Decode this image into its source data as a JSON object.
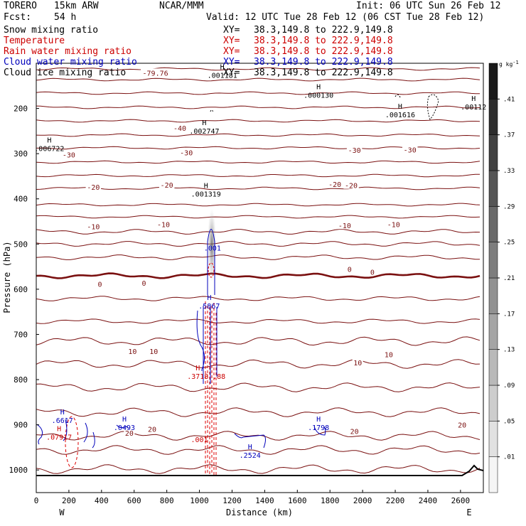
{
  "header": {
    "model": "TORERO",
    "grid": "15km ARW",
    "org": "NCAR/MMM",
    "init": "Init: 06 UTC Sun 26 Feb 12",
    "fcst_label": "Fcst:",
    "fcst_value": "54 h",
    "valid": "Valid: 12 UTC Tue 28 Feb 12 (06 CST Tue 28 Feb 12)"
  },
  "fields": [
    {
      "name": "Snow mixing ratio",
      "xy": "XY=",
      "range": "38.3,149.8 to 222.9,149.8",
      "color": "#000000"
    },
    {
      "name": "Temperature",
      "xy": "XY=",
      "range": "38.3,149.8 to 222.9,149.8",
      "color": "#cc0000"
    },
    {
      "name": "Rain water mixing ratio",
      "xy": "XY=",
      "range": "38.3,149.8 to 222.9,149.8",
      "color": "#cc0000"
    },
    {
      "name": "Cloud water mixing ratio",
      "xy": "XY=",
      "range": "38.3,149.8 to 222.9,149.8",
      "color": "#0000bb"
    },
    {
      "name": "Cloud ice mixing ratio",
      "xy": "XY=",
      "range": "38.3,149.8 to 222.9,149.8",
      "color": "#000000"
    }
  ],
  "chart_data": {
    "type": "contour cross-section",
    "xlabel": "Distance (km)",
    "ylabel": "Pressure (hPa)",
    "xlim": [
      0,
      2740
    ],
    "ylim": [
      1050,
      100
    ],
    "xticks": [
      0,
      200,
      400,
      600,
      800,
      1000,
      1200,
      1400,
      1600,
      1800,
      2000,
      2200,
      2400,
      2600
    ],
    "yticks": [
      200,
      300,
      400,
      500,
      600,
      700,
      800,
      900,
      1000
    ],
    "x_end_labels": {
      "left": "W",
      "right": "E"
    },
    "colorbar": {
      "unit": "g kg",
      "unit_exp": "-1",
      "levels": [
        0.01,
        0.05,
        0.09,
        0.13,
        0.17,
        0.21,
        0.25,
        0.29,
        0.33,
        0.37,
        0.41
      ],
      "labels": [
        ".01",
        ".05",
        ".09",
        ".13",
        ".17",
        ".21",
        ".25",
        ".29",
        ".33",
        ".37",
        ".41"
      ]
    },
    "temperature_contours": [
      {
        "label": "-79.76",
        "x": 730,
        "p": 121
      },
      {
        "label": "-40",
        "x": 880,
        "p": 243
      },
      {
        "label": "-30",
        "x": 200,
        "p": 302
      },
      {
        "label": "-30",
        "x": 920,
        "p": 297
      },
      {
        "label": "-30",
        "x": 1950,
        "p": 292
      },
      {
        "label": "-30",
        "x": 2290,
        "p": 291
      },
      {
        "label": "-20",
        "x": 350,
        "p": 374
      },
      {
        "label": "-20",
        "x": 800,
        "p": 369
      },
      {
        "label": "-20",
        "x": 1830,
        "p": 367
      },
      {
        "label": "-20",
        "x": 1930,
        "p": 370
      },
      {
        "label": "-10",
        "x": 350,
        "p": 461
      },
      {
        "label": "-10",
        "x": 780,
        "p": 456
      },
      {
        "label": "-10",
        "x": 1890,
        "p": 459
      },
      {
        "label": "-10",
        "x": 2190,
        "p": 456
      },
      {
        "label": "0",
        "x": 390,
        "p": 588
      },
      {
        "label": "0",
        "x": 660,
        "p": 586
      },
      {
        "label": "0",
        "x": 1920,
        "p": 555
      },
      {
        "label": "0",
        "x": 2060,
        "p": 562
      },
      {
        "label": "10",
        "x": 590,
        "p": 737
      },
      {
        "label": "10",
        "x": 720,
        "p": 737
      },
      {
        "label": "10",
        "x": 1970,
        "p": 762
      },
      {
        "label": "10",
        "x": 2160,
        "p": 744
      },
      {
        "label": "20",
        "x": 570,
        "p": 918
      },
      {
        "label": "20",
        "x": 710,
        "p": 909
      },
      {
        "label": "20",
        "x": 1950,
        "p": 914
      },
      {
        "label": "20",
        "x": 2610,
        "p": 900
      }
    ],
    "extrema_labels": [
      {
        "marker": "H",
        "value": ".001181",
        "x": 1140,
        "p": 120,
        "color": "#000000"
      },
      {
        "marker": "H",
        "value": ".000130",
        "x": 1730,
        "p": 164,
        "color": "#000000"
      },
      {
        "marker": "H",
        "value": ".001616",
        "x": 2230,
        "p": 207,
        "color": "#000000"
      },
      {
        "marker": "H",
        "value": ".00112",
        "x": 2680,
        "p": 190,
        "color": "#000000"
      },
      {
        "marker": "H",
        "value": ".002747",
        "x": 1030,
        "p": 243,
        "color": "#000000"
      },
      {
        "marker": "H",
        "value": ".006722",
        "x": 80,
        "p": 282,
        "color": "#000000"
      },
      {
        "marker": "H",
        "value": ".001319",
        "x": 1040,
        "p": 382,
        "color": "#000000"
      },
      {
        "marker": "",
        "value": ".001",
        "x": 1080,
        "p": 502,
        "color": "#0000bb"
      },
      {
        "marker": "H",
        "value": ".5867",
        "x": 1060,
        "p": 630,
        "color": "#0000bb"
      },
      {
        "marker": "H",
        "value": ".3718",
        "x": 990,
        "p": 786,
        "color": "#cc0000"
      },
      {
        "marker": "",
        "value": ".88",
        "x": 1120,
        "p": 786,
        "color": "#cc0000"
      },
      {
        "marker": "H",
        "value": ".6617",
        "x": 160,
        "p": 883,
        "color": "#0000bb"
      },
      {
        "marker": "H",
        "value": ".07917",
        "x": 140,
        "p": 920,
        "color": "#cc0000"
      },
      {
        "marker": "H",
        "value": ".0493",
        "x": 540,
        "p": 899,
        "color": "#0000bb"
      },
      {
        "marker": "H",
        "value": ".1798",
        "x": 1730,
        "p": 899,
        "color": "#0000bb"
      },
      {
        "marker": "H",
        "value": ".2524",
        "x": 1310,
        "p": 960,
        "color": "#0000bb"
      },
      {
        "marker": "",
        "value": ".001",
        "x": 1000,
        "p": 926,
        "color": "#cc0000"
      }
    ]
  },
  "colors": {
    "temperature": "#7a1010",
    "rain": "#dd0000",
    "cloud_water": "#0000bb",
    "snow": "#000000",
    "axis": "#000000"
  }
}
